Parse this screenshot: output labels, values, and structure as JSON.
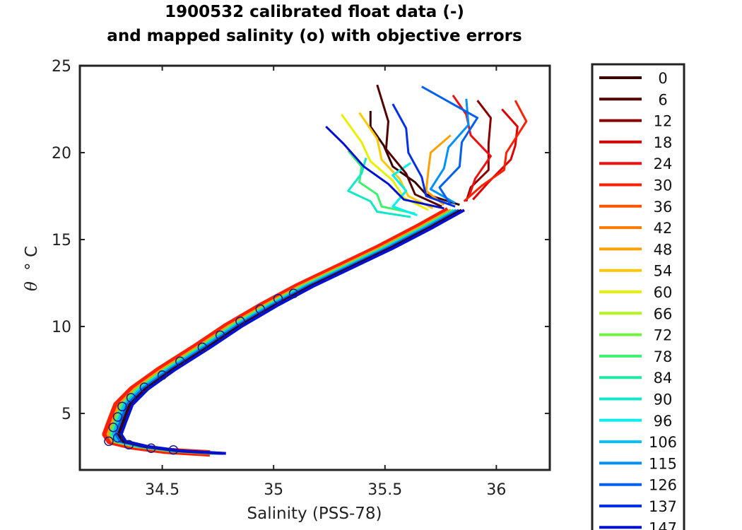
{
  "chart_data": {
    "type": "line",
    "title_line1": "1900532 calibrated float data (-)",
    "title_line2": "and mapped salinity (o) with objective errors",
    "xlabel": "Salinity (PSS-78)",
    "ylabel_symbol": "θ",
    "ylabel_unit": "° C",
    "xlim": [
      34.13,
      36.24
    ],
    "ylim": [
      1.75,
      25
    ],
    "xticks": [
      34.5,
      35,
      35.5,
      36
    ],
    "xtick_labels": [
      "34.5",
      "35",
      "35.5",
      "36"
    ],
    "yticks": [
      5,
      10,
      15,
      20,
      25
    ],
    "ytick_labels": [
      "5",
      "10",
      "15",
      "20",
      "25"
    ],
    "legend": {
      "placement": "outside-right",
      "entries": [
        {
          "label": "0",
          "color": "#3a0000"
        },
        {
          "label": "6",
          "color": "#550000"
        },
        {
          "label": "12",
          "color": "#8a0000"
        },
        {
          "label": "18",
          "color": "#e00000"
        },
        {
          "label": "24",
          "color": "#f01010"
        },
        {
          "label": "30",
          "color": "#ff2000"
        },
        {
          "label": "36",
          "color": "#ff5500"
        },
        {
          "label": "42",
          "color": "#ff7a00"
        },
        {
          "label": "48",
          "color": "#ffa000"
        },
        {
          "label": "54",
          "color": "#ffc800"
        },
        {
          "label": "60",
          "color": "#e8f000"
        },
        {
          "label": "66",
          "color": "#b4f520"
        },
        {
          "label": "72",
          "color": "#70f040"
        },
        {
          "label": "78",
          "color": "#40f070"
        },
        {
          "label": "84",
          "color": "#20e8a0"
        },
        {
          "label": "90",
          "color": "#10e8c8"
        },
        {
          "label": "96",
          "color": "#00f0f0"
        },
        {
          "label": "106",
          "color": "#00c0f8"
        },
        {
          "label": "115",
          "color": "#0090f8"
        },
        {
          "label": "126",
          "color": "#0060f0"
        },
        {
          "label": "137",
          "color": "#0030e8"
        },
        {
          "label": "147",
          "color": "#0010d0"
        }
      ]
    },
    "common_deep_profile": [
      {
        "s": 34.75,
        "t": 2.7
      },
      {
        "s": 34.55,
        "t": 2.85
      },
      {
        "s": 34.4,
        "t": 3.1
      },
      {
        "s": 34.3,
        "t": 3.4
      },
      {
        "s": 34.28,
        "t": 3.8
      },
      {
        "s": 34.3,
        "t": 4.5
      },
      {
        "s": 34.33,
        "t": 5.5
      },
      {
        "s": 34.4,
        "t": 6.4
      },
      {
        "s": 34.52,
        "t": 7.5
      },
      {
        "s": 34.68,
        "t": 8.8
      },
      {
        "s": 34.82,
        "t": 10.0
      },
      {
        "s": 34.98,
        "t": 11.2
      },
      {
        "s": 35.14,
        "t": 12.3
      },
      {
        "s": 35.32,
        "t": 13.4
      },
      {
        "s": 35.5,
        "t": 14.5
      },
      {
        "s": 35.68,
        "t": 15.7
      },
      {
        "s": 35.82,
        "t": 16.7
      }
    ],
    "series": [
      {
        "name": "0",
        "upper": [
          {
            "s": 35.82,
            "t": 17.0
          },
          {
            "s": 35.7,
            "t": 17.6
          },
          {
            "s": 35.62,
            "t": 18.3
          },
          {
            "s": 35.55,
            "t": 19.2
          },
          {
            "s": 35.48,
            "t": 20.4
          },
          {
            "s": 35.45,
            "t": 21.5
          },
          {
            "s": 35.42,
            "t": 22.4
          }
        ]
      },
      {
        "name": "12",
        "upper": [
          {
            "s": 35.85,
            "t": 17.2
          },
          {
            "s": 35.9,
            "t": 18.0
          },
          {
            "s": 35.95,
            "t": 19.0
          },
          {
            "s": 35.98,
            "t": 20.5
          },
          {
            "s": 35.96,
            "t": 22.0
          },
          {
            "s": 35.93,
            "t": 23.0
          }
        ]
      },
      {
        "name": "18",
        "upper": [
          {
            "s": 35.88,
            "t": 17.3
          },
          {
            "s": 35.98,
            "t": 18.3
          },
          {
            "s": 36.05,
            "t": 19.6
          },
          {
            "s": 36.1,
            "t": 20.4
          },
          {
            "s": 36.08,
            "t": 21.5
          },
          {
            "s": 36.04,
            "t": 22.5
          }
        ]
      },
      {
        "name": "24",
        "upper": [
          {
            "s": 35.86,
            "t": 17.4
          },
          {
            "s": 35.92,
            "t": 18.5
          },
          {
            "s": 35.96,
            "t": 19.8
          },
          {
            "s": 35.9,
            "t": 21.0
          },
          {
            "s": 35.85,
            "t": 22.2
          },
          {
            "s": 35.82,
            "t": 23.3
          }
        ]
      },
      {
        "name": "30",
        "upper": [
          {
            "s": 35.84,
            "t": 17.2
          },
          {
            "s": 35.95,
            "t": 18.1
          },
          {
            "s": 36.02,
            "t": 19.0
          },
          {
            "s": 36.06,
            "t": 20.0
          },
          {
            "s": 36.12,
            "t": 21.8
          },
          {
            "s": 36.1,
            "t": 23.0
          }
        ]
      },
      {
        "name": "48",
        "upper": [
          {
            "s": 35.75,
            "t": 17.0
          },
          {
            "s": 35.7,
            "t": 17.8
          },
          {
            "s": 35.68,
            "t": 19.0
          },
          {
            "s": 35.72,
            "t": 20.0
          },
          {
            "s": 35.78,
            "t": 21.0
          }
        ]
      },
      {
        "name": "54",
        "upper": [
          {
            "s": 35.7,
            "t": 16.8
          },
          {
            "s": 35.62,
            "t": 17.5
          },
          {
            "s": 35.55,
            "t": 18.5
          },
          {
            "s": 35.5,
            "t": 19.6
          },
          {
            "s": 35.45,
            "t": 20.8
          },
          {
            "s": 35.4,
            "t": 22.3
          }
        ]
      },
      {
        "name": "60",
        "upper": [
          {
            "s": 35.68,
            "t": 16.7
          },
          {
            "s": 35.6,
            "t": 17.4
          },
          {
            "s": 35.52,
            "t": 18.4
          },
          {
            "s": 35.45,
            "t": 19.5
          },
          {
            "s": 35.38,
            "t": 20.6
          },
          {
            "s": 35.32,
            "t": 22.2
          }
        ]
      },
      {
        "name": "78",
        "upper": [
          {
            "s": 35.62,
            "t": 16.5
          },
          {
            "s": 35.5,
            "t": 16.9
          },
          {
            "s": 35.45,
            "t": 17.6
          },
          {
            "s": 35.4,
            "t": 18.3
          },
          {
            "s": 35.38,
            "t": 19.2
          },
          {
            "s": 35.35,
            "t": 20.1
          }
        ]
      },
      {
        "name": "90",
        "upper": [
          {
            "s": 35.6,
            "t": 16.3
          },
          {
            "s": 35.48,
            "t": 16.6
          },
          {
            "s": 35.42,
            "t": 17.2
          },
          {
            "s": 35.35,
            "t": 17.8
          },
          {
            "s": 35.38,
            "t": 18.8
          },
          {
            "s": 35.43,
            "t": 19.7
          }
        ]
      },
      {
        "name": "96",
        "upper": [
          {
            "s": 35.63,
            "t": 16.4
          },
          {
            "s": 35.55,
            "t": 16.9
          },
          {
            "s": 35.58,
            "t": 17.8
          },
          {
            "s": 35.55,
            "t": 18.7
          },
          {
            "s": 35.6,
            "t": 19.4
          }
        ]
      },
      {
        "name": "115",
        "upper": [
          {
            "s": 35.8,
            "t": 17.1
          },
          {
            "s": 35.72,
            "t": 17.9
          },
          {
            "s": 35.75,
            "t": 19.1
          },
          {
            "s": 35.8,
            "t": 20.3
          },
          {
            "s": 35.86,
            "t": 21.6
          },
          {
            "s": 35.88,
            "t": 23.1
          }
        ]
      },
      {
        "name": "126",
        "upper": [
          {
            "s": 35.78,
            "t": 17.0
          },
          {
            "s": 35.76,
            "t": 18.0
          },
          {
            "s": 35.82,
            "t": 19.2
          },
          {
            "s": 35.86,
            "t": 20.6
          },
          {
            "s": 35.9,
            "t": 22.0
          },
          {
            "s": 35.68,
            "t": 23.8
          }
        ]
      },
      {
        "name": "137",
        "upper": [
          {
            "s": 35.8,
            "t": 16.9
          },
          {
            "s": 35.7,
            "t": 17.5
          },
          {
            "s": 35.65,
            "t": 18.6
          },
          {
            "s": 35.62,
            "t": 20.0
          },
          {
            "s": 35.58,
            "t": 21.4
          },
          {
            "s": 35.55,
            "t": 22.8
          }
        ]
      },
      {
        "name": "147",
        "upper": [
          {
            "s": 35.75,
            "t": 16.8
          },
          {
            "s": 35.6,
            "t": 17.3
          },
          {
            "s": 35.5,
            "t": 18.2
          },
          {
            "s": 35.42,
            "t": 19.2
          },
          {
            "s": 35.3,
            "t": 20.5
          },
          {
            "s": 35.25,
            "t": 21.5
          }
        ]
      },
      {
        "name": "6",
        "upper": [
          {
            "s": 35.74,
            "t": 16.9
          },
          {
            "s": 35.65,
            "t": 17.6
          },
          {
            "s": 35.58,
            "t": 18.8
          },
          {
            "s": 35.52,
            "t": 20.2
          },
          {
            "s": 35.5,
            "t": 21.8
          },
          {
            "s": 35.48,
            "t": 23.9
          }
        ]
      }
    ],
    "mapped_points": [
      {
        "s": 34.26,
        "t": 3.4
      },
      {
        "s": 34.3,
        "t": 3.6
      },
      {
        "s": 34.35,
        "t": 3.2
      },
      {
        "s": 34.28,
        "t": 4.2
      },
      {
        "s": 34.3,
        "t": 4.8
      },
      {
        "s": 34.32,
        "t": 5.4
      },
      {
        "s": 34.36,
        "t": 5.9
      },
      {
        "s": 34.42,
        "t": 6.5
      },
      {
        "s": 34.5,
        "t": 7.2
      },
      {
        "s": 34.58,
        "t": 8.0
      },
      {
        "s": 34.68,
        "t": 8.8
      },
      {
        "s": 34.76,
        "t": 9.5
      },
      {
        "s": 34.85,
        "t": 10.3
      },
      {
        "s": 34.94,
        "t": 11.0
      },
      {
        "s": 35.02,
        "t": 11.6
      },
      {
        "s": 35.09,
        "t": 11.9
      },
      {
        "s": 34.45,
        "t": 3.0
      },
      {
        "s": 34.55,
        "t": 2.9
      }
    ]
  }
}
